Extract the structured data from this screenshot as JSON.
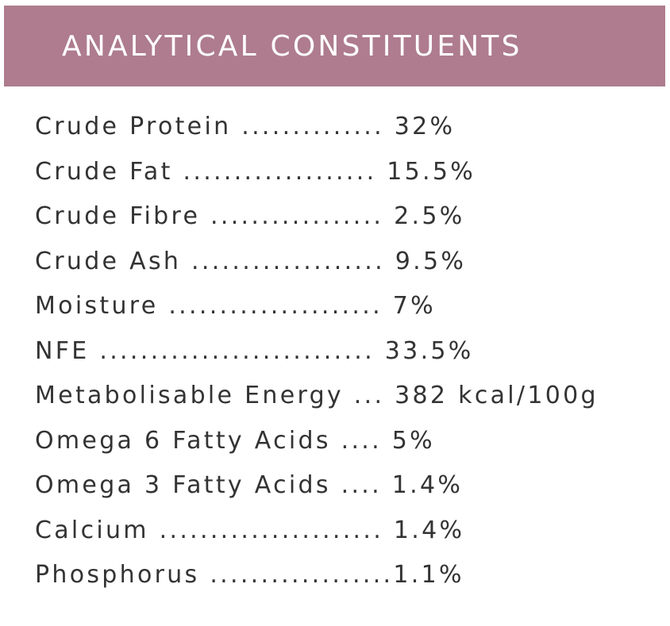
{
  "header": {
    "title": "ANALYTICAL CONSTITUENTS"
  },
  "constituents": [
    {
      "text": "Crude Protein .............. 32%"
    },
    {
      "text": "Crude Fat ................... 15.5%"
    },
    {
      "text": "Crude Fibre ................. 2.5%"
    },
    {
      "text": "Crude Ash ................... 9.5%"
    },
    {
      "text": "Moisture ..................... 7%"
    },
    {
      "text": "NFE ........................... 33.5%"
    },
    {
      "text": "Metabolisable Energy ... 382 kcal/100g"
    },
    {
      "text": "Omega 6 Fatty Acids .... 5%"
    },
    {
      "text": "Omega 3 Fatty Acids .... 1.4%"
    },
    {
      "text": "Calcium ...................... 1.4%"
    },
    {
      "text": "Phosphorus ..................1.1%"
    }
  ],
  "colors": {
    "header_background": "#ae7c8e",
    "header_text": "#ffffff",
    "body_text": "#333333"
  }
}
